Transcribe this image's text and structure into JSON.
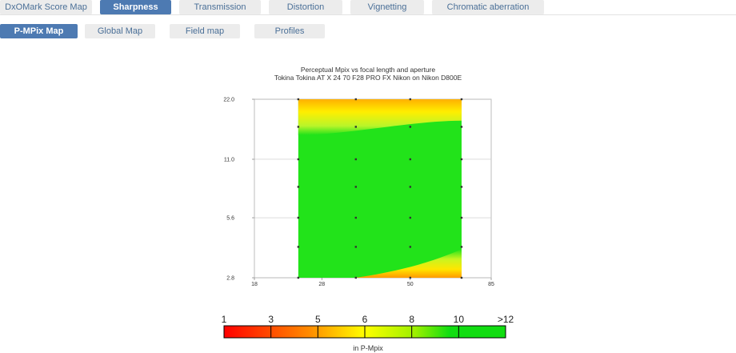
{
  "top_tabs": [
    {
      "label": "DxOMark Score Map",
      "active": false
    },
    {
      "label": "Sharpness",
      "active": true
    },
    {
      "label": "Transmission",
      "active": false
    },
    {
      "label": "Distortion",
      "active": false
    },
    {
      "label": "Vignetting",
      "active": false
    },
    {
      "label": "Chromatic aberration",
      "active": false
    }
  ],
  "sub_tabs": [
    {
      "label": "P-MPix Map",
      "active": true
    },
    {
      "label": "Global Map",
      "active": false
    },
    {
      "label": "Field map",
      "active": false
    },
    {
      "label": "Profiles",
      "active": false
    }
  ],
  "chart_data": {
    "type": "heatmap",
    "title": "Perceptual Mpix vs focal length and aperture",
    "subtitle": "Tokina Tokina AT X 24 70 F28 PRO FX Nikon on Nikon D800E",
    "x_ticks": [
      18,
      28,
      50,
      85
    ],
    "y_ticks": [
      2.8,
      5.6,
      11.0,
      22.0
    ],
    "x_range": [
      18,
      85
    ],
    "y_range": [
      2.8,
      22.0
    ],
    "x_scale": "log",
    "y_scale": "log",
    "data_x_range": [
      24,
      70
    ],
    "sample_x": [
      24,
      35,
      50,
      70
    ],
    "sample_y": [
      2.8,
      4,
      5.6,
      8,
      11.0,
      16,
      22.0
    ],
    "grid": true,
    "legend": {
      "labels": [
        "1",
        "3",
        "5",
        "6",
        "8",
        "10",
        ">12"
      ],
      "unit": "in P-Mpix",
      "colors": [
        "#ff0000",
        "#ffa500",
        "#ffff00",
        "#b4ff00",
        "#00e000"
      ]
    }
  }
}
